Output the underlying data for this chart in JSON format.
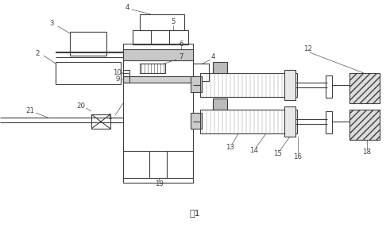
{
  "title": "图1",
  "bg": "#ffffff",
  "lc": "#404040",
  "lw": 0.8
}
